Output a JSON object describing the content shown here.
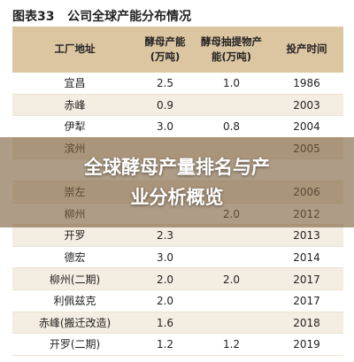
{
  "header": {
    "title": "图表33   公司全球产能分布情况"
  },
  "table": {
    "columns": [
      "工厂地址",
      "酵母产能(万吨)",
      "酵母抽提物产能(万吨)",
      "投产时间"
    ],
    "rows": [
      [
        "宜昌",
        "2.5",
        "1.0",
        "1986"
      ],
      [
        "赤峰",
        "0.9",
        null,
        "2003"
      ],
      [
        "伊犁",
        "3.0",
        "0.8",
        "2004"
      ],
      [
        "滨州",
        null,
        null,
        "2005"
      ],
      [
        null,
        null,
        null,
        null
      ],
      [
        "崇左",
        null,
        null,
        "2006"
      ],
      [
        "柳州",
        null,
        "2.0",
        "2012"
      ],
      [
        "开罗",
        "2.3",
        null,
        "2013"
      ],
      [
        "德宏",
        "3.0",
        null,
        "2014"
      ],
      [
        "柳州(二期)",
        "2.0",
        "2.0",
        "2017"
      ],
      [
        "利佩兹克",
        "2.0",
        null,
        "2017"
      ],
      [
        "赤峰(搬迁改造)",
        "1.6",
        null,
        "2018"
      ],
      [
        "开罗(二期)",
        "1.2",
        "1.2",
        "2019"
      ]
    ]
  },
  "banner": {
    "lines": [
      "全球酵母产量排名与产",
      "业分析概览"
    ]
  }
}
